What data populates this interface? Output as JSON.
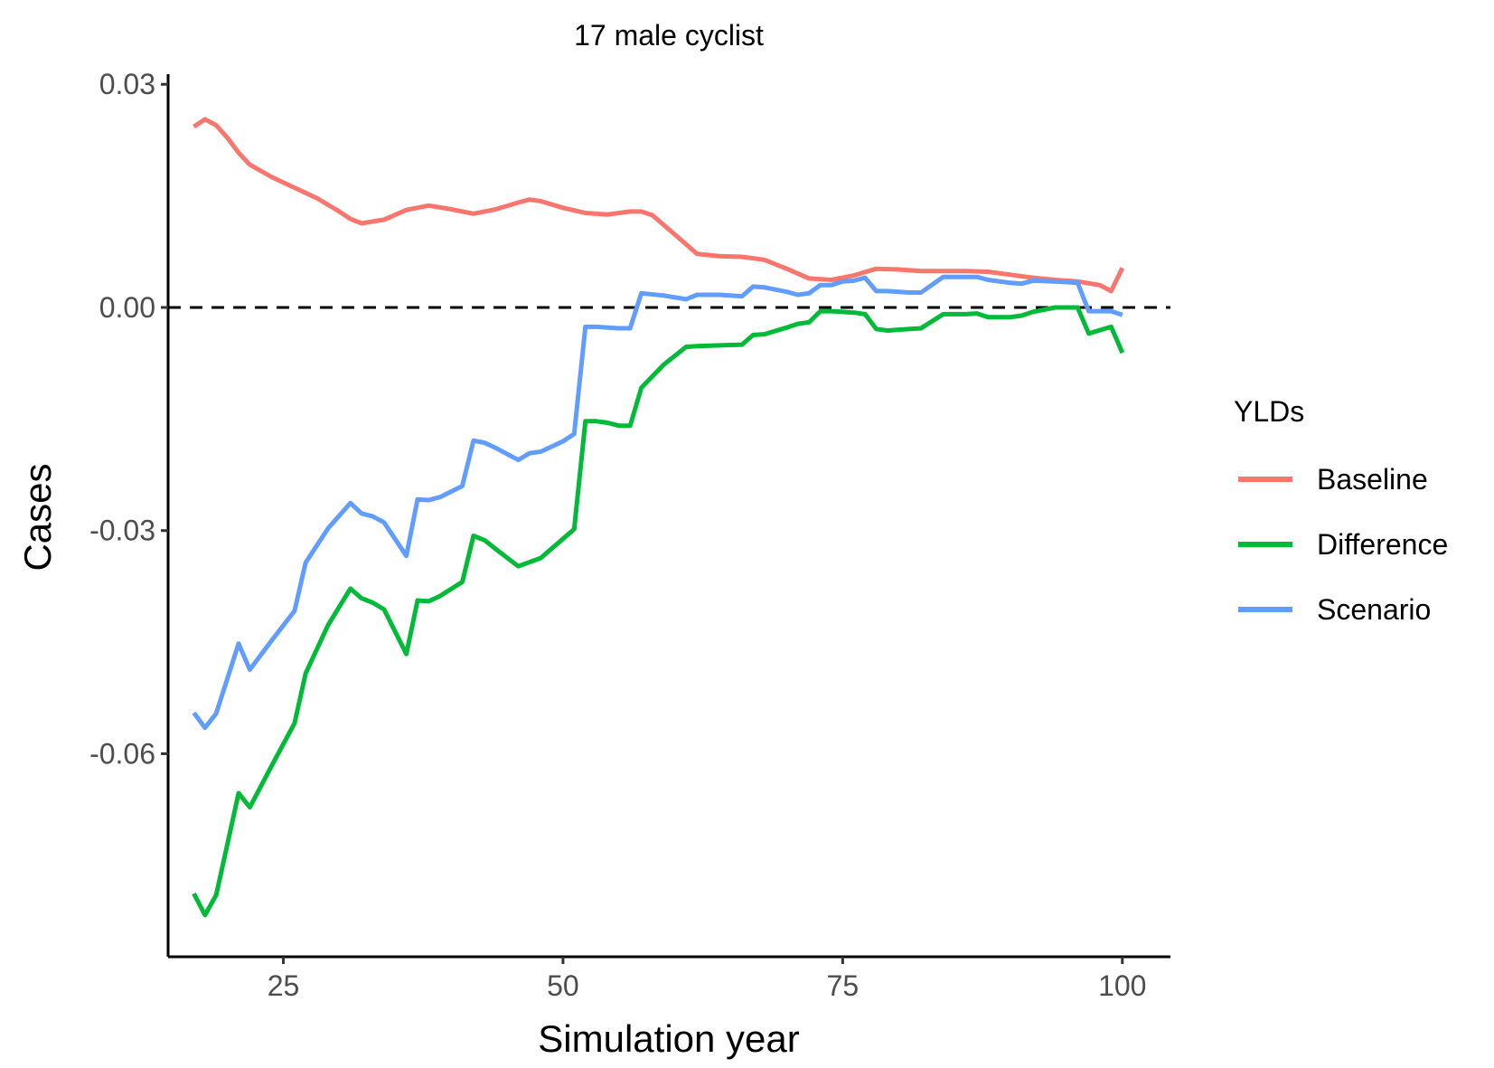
{
  "chart_data": {
    "type": "line",
    "title": "17 male cyclist",
    "xlabel": "Simulation year",
    "ylabel": "Cases",
    "xlim": [
      14.7,
      104.3
    ],
    "ylim": [
      -0.0873,
      0.031
    ],
    "xticks": [
      25,
      50,
      75,
      100
    ],
    "xtick_labels": [
      "25",
      "50",
      "75",
      "100"
    ],
    "yticks": [
      -0.06,
      -0.03,
      0.0,
      0.03
    ],
    "ytick_labels": [
      "-0.06",
      "-0.03",
      "0.00",
      "0.03"
    ],
    "reference_line": {
      "y": 0,
      "style": "dashed",
      "color": "#000000"
    },
    "grid": false,
    "legend": {
      "title": "YLDs",
      "position": "right"
    },
    "series": [
      {
        "name": "Baseline",
        "color": "#F8766D",
        "x": [
          17,
          18,
          19,
          20,
          21,
          22,
          24,
          26,
          28,
          30,
          31,
          32,
          34,
          36,
          38,
          40,
          42,
          44,
          46,
          47,
          48,
          50,
          52,
          54,
          56,
          57,
          58,
          60,
          62,
          64,
          66,
          68,
          70,
          72,
          74,
          76,
          78,
          80,
          82,
          84,
          86,
          88,
          90,
          92,
          94,
          96,
          98,
          99,
          100
        ],
        "values": [
          0.0243,
          0.0253,
          0.0245,
          0.0228,
          0.0208,
          0.0192,
          0.0175,
          0.0161,
          0.0147,
          0.0129,
          0.0119,
          0.0113,
          0.0118,
          0.0131,
          0.0137,
          0.0132,
          0.0126,
          0.0132,
          0.0141,
          0.0145,
          0.0143,
          0.0134,
          0.0127,
          0.0125,
          0.0129,
          0.0129,
          0.0124,
          0.0098,
          0.0072,
          0.0069,
          0.0068,
          0.0064,
          0.0052,
          0.0039,
          0.0037,
          0.0043,
          0.0052,
          0.0051,
          0.0049,
          0.0049,
          0.0049,
          0.0048,
          0.0044,
          0.004,
          0.0037,
          0.0035,
          0.003,
          0.0022,
          0.0053
        ]
      },
      {
        "name": "Difference",
        "color": "#00BA38",
        "x": [
          17,
          18,
          19,
          21,
          22,
          24,
          26,
          27,
          29,
          31,
          32,
          33,
          34,
          36,
          37,
          38,
          39,
          41,
          42,
          43,
          44,
          46,
          48,
          50,
          51,
          52,
          53,
          54,
          55,
          56,
          57,
          59,
          61,
          62,
          64,
          66,
          67,
          68,
          70,
          71,
          72,
          73,
          74,
          75,
          76,
          77,
          78,
          79,
          81,
          82,
          84,
          86,
          87,
          88,
          90,
          91,
          92,
          94,
          95,
          96,
          97,
          99,
          100
        ],
        "values": [
          -0.0788,
          -0.0817,
          -0.079,
          -0.0653,
          -0.0672,
          -0.0615,
          -0.0559,
          -0.0492,
          -0.0427,
          -0.0378,
          -0.0391,
          -0.0397,
          -0.0406,
          -0.0466,
          -0.0394,
          -0.0395,
          -0.0388,
          -0.0369,
          -0.0307,
          -0.0313,
          -0.0325,
          -0.0348,
          -0.0337,
          -0.0311,
          -0.0298,
          -0.0153,
          -0.0153,
          -0.0155,
          -0.0159,
          -0.0159,
          -0.0108,
          -0.0077,
          -0.0053,
          -0.0052,
          -0.0051,
          -0.005,
          -0.0037,
          -0.0036,
          -0.0027,
          -0.0022,
          -0.002,
          -0.0005,
          -0.0005,
          -0.0006,
          -0.0007,
          -0.0009,
          -0.0029,
          -0.0031,
          -0.0029,
          -0.0028,
          -0.0009,
          -0.0009,
          -0.0008,
          -0.0013,
          -0.0013,
          -0.0011,
          -0.0006,
          0.0,
          0.0,
          0.0,
          -0.0035,
          -0.0026,
          -0.0061
        ]
      },
      {
        "name": "Scenario",
        "color": "#619CFF",
        "x": [
          17,
          18,
          19,
          21,
          22,
          24,
          26,
          27,
          29,
          31,
          32,
          33,
          34,
          36,
          37,
          38,
          39,
          41,
          42,
          43,
          44,
          46,
          47,
          48,
          50,
          51,
          52,
          53,
          54,
          55,
          56,
          57,
          59,
          61,
          62,
          64,
          66,
          67,
          68,
          70,
          71,
          72,
          73,
          74,
          75,
          76,
          77,
          78,
          79,
          81,
          82,
          84,
          86,
          87,
          88,
          90,
          91,
          92,
          94,
          95,
          96,
          97,
          99,
          100
        ],
        "values": [
          -0.0545,
          -0.0565,
          -0.0546,
          -0.0452,
          -0.0487,
          -0.0447,
          -0.0408,
          -0.0343,
          -0.0297,
          -0.0263,
          -0.0277,
          -0.0281,
          -0.0289,
          -0.0334,
          -0.0258,
          -0.0259,
          -0.0255,
          -0.024,
          -0.0179,
          -0.0182,
          -0.0189,
          -0.0205,
          -0.0196,
          -0.0194,
          -0.018,
          -0.017,
          -0.0026,
          -0.0026,
          -0.0027,
          -0.0028,
          -0.0028,
          0.0019,
          0.0016,
          0.0011,
          0.0017,
          0.0017,
          0.0015,
          0.0028,
          0.0027,
          0.0021,
          0.0017,
          0.0019,
          0.003,
          0.003,
          0.0035,
          0.0036,
          0.004,
          0.0022,
          0.0022,
          0.002,
          0.002,
          0.0041,
          0.0041,
          0.0041,
          0.0037,
          0.0033,
          0.0032,
          0.0036,
          0.0035,
          0.0034,
          0.0033,
          -0.0005,
          -0.0005,
          -0.001
        ]
      }
    ]
  }
}
